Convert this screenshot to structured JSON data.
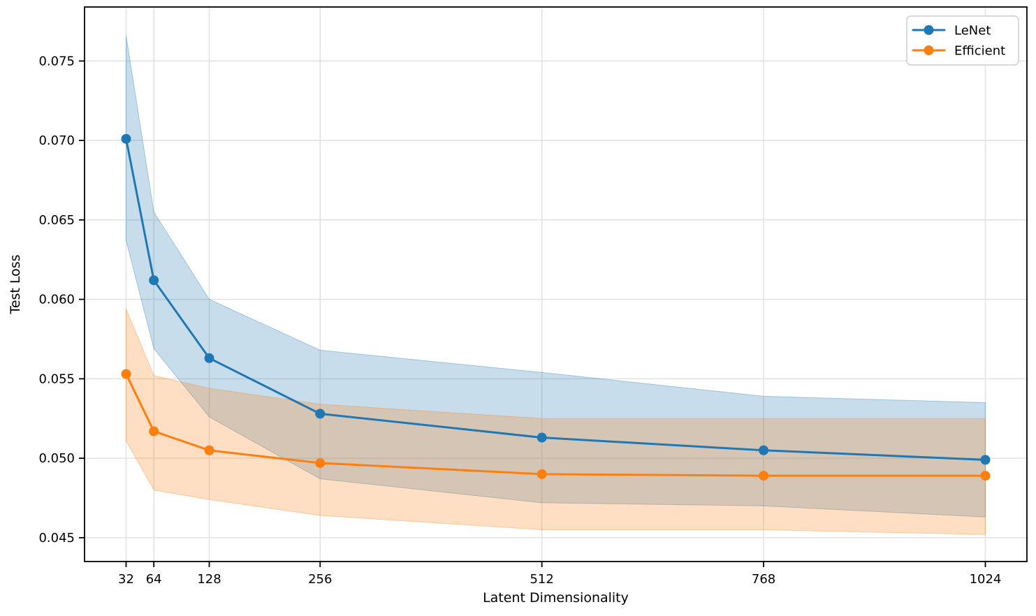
{
  "chart_data": {
    "type": "line",
    "title": "",
    "xlabel": "Latent Dimensionality",
    "ylabel": "Test Loss",
    "x": [
      32,
      64,
      128,
      256,
      512,
      768,
      1024
    ],
    "x_tick_labels": [
      "32",
      "64",
      "128",
      "256",
      "512",
      "768",
      "1024"
    ],
    "y_ticks": [
      0.045,
      0.05,
      0.055,
      0.06,
      0.065,
      0.07,
      0.075
    ],
    "y_tick_labels": [
      "0.045",
      "0.050",
      "0.055",
      "0.060",
      "0.065",
      "0.070",
      "0.075"
    ],
    "xlim": [
      -16.0,
      1072.0
    ],
    "ylim": [
      0.0435,
      0.0784
    ],
    "grid": true,
    "grid_color": "#e2e2e2",
    "axis_color": "#000000",
    "band_opacity": 0.25,
    "legend": {
      "position": "upper right",
      "entries": [
        "LeNet",
        "Efficient"
      ]
    },
    "series": [
      {
        "name": "LeNet",
        "color": "#1f77b4",
        "mean": [
          0.0701,
          0.0612,
          0.0563,
          0.0528,
          0.0513,
          0.0505,
          0.0499
        ],
        "band_upper": [
          0.0766,
          0.0655,
          0.06,
          0.0568,
          0.0554,
          0.0539,
          0.0535
        ],
        "band_lower": [
          0.0637,
          0.0569,
          0.0526,
          0.0487,
          0.0472,
          0.047,
          0.0463
        ]
      },
      {
        "name": "Efficient",
        "color": "#ff7f0e",
        "mean": [
          0.0553,
          0.0517,
          0.0505,
          0.0497,
          0.049,
          0.0489,
          0.0489
        ],
        "band_upper": [
          0.0594,
          0.0552,
          0.0544,
          0.0534,
          0.0525,
          0.0525,
          0.0525
        ],
        "band_lower": [
          0.0511,
          0.048,
          0.0474,
          0.0464,
          0.0455,
          0.0455,
          0.0452
        ]
      }
    ]
  }
}
